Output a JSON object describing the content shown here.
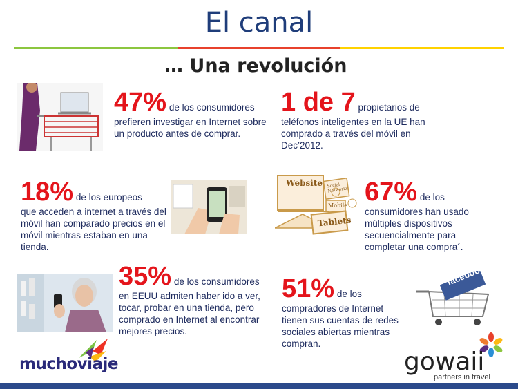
{
  "title": "El canal",
  "subtitle": "… Una revolución",
  "divider_colors": [
    "#8cc63f",
    "#e8412c",
    "#ffd200"
  ],
  "stats": [
    {
      "big": "47%",
      "lead": " de los consumidores",
      "rest": "prefieren investigar en Internet sobre un producto antes de comprar."
    },
    {
      "big": "1 de 7",
      "lead": " propietarios de",
      "rest": "teléfonos inteligentes en la UE han comprado a través del móvil en Dec’2012."
    },
    {
      "big": "18%",
      "lead": " de los europeos",
      "rest": "que acceden a internet a través del móvil han comparado precios en el móvil mientras estaban en una tienda."
    },
    {
      "big": "67%",
      "lead": " de los",
      "rest": "consumidores han usado múltiples dispositivos secuencialmente para completar una compra´."
    },
    {
      "big": "35%",
      "lead": " de los consumidores",
      "rest": "en EEUU admiten haber ido a ver, tocar, probar en una tienda, pero comprado en Internet al encontrar mejores precios."
    },
    {
      "big": "51%",
      "lead": " de los",
      "rest": "compradores de Internet tienen sus cuentas de redes sociales abiertas mientras compran."
    }
  ],
  "illustration": {
    "labels": [
      "Website",
      "Social Networks",
      "Mobile",
      "Tablets"
    ],
    "facebook": "facebook"
  },
  "logos": {
    "muchoviaje": "muchoviaje",
    "gowaii": "gowaii",
    "gowaii_tagline": "partners in travel"
  }
}
